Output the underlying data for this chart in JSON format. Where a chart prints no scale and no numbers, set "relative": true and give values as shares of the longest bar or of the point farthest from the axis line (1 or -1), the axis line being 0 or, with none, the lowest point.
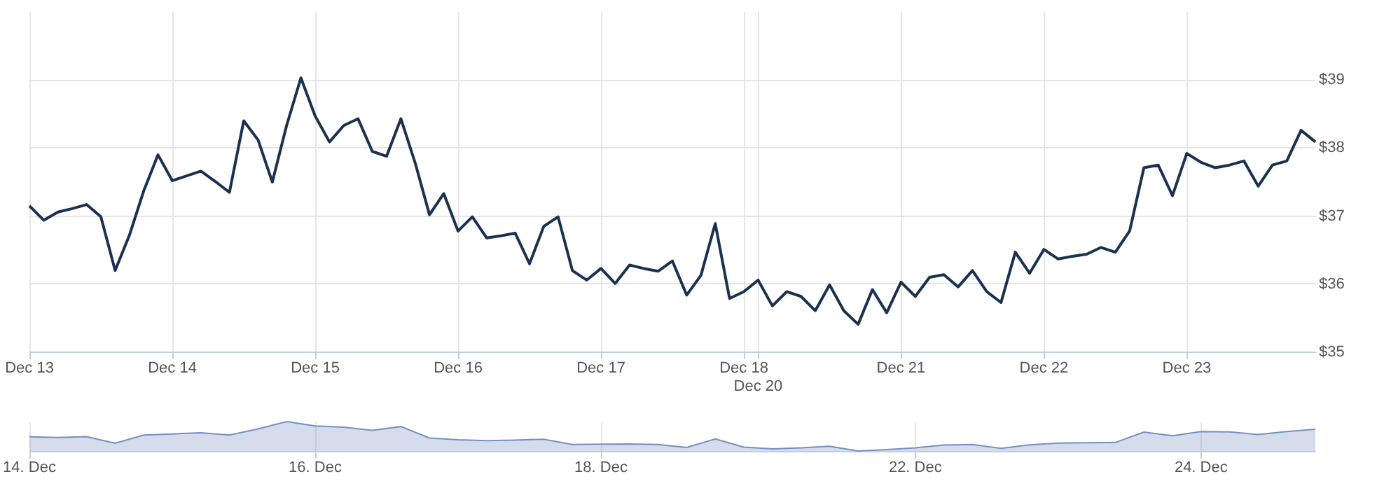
{
  "chart_data": [
    {
      "type": "line",
      "ylim": [
        35,
        40
      ],
      "grid": true,
      "marker": "none",
      "line_style": "solid",
      "categories": [
        "Dec 13",
        null,
        null,
        null,
        null,
        null,
        null,
        null,
        null,
        null,
        "Dec 14",
        null,
        null,
        null,
        null,
        null,
        null,
        null,
        null,
        null,
        "Dec 15",
        null,
        null,
        null,
        null,
        null,
        null,
        null,
        null,
        null,
        "Dec 16",
        null,
        null,
        null,
        null,
        null,
        null,
        null,
        null,
        null,
        "Dec 17",
        null,
        null,
        null,
        null,
        null,
        null,
        null,
        null,
        null,
        "Dec 18",
        "Dec 20",
        null,
        null,
        null,
        null,
        null,
        null,
        null,
        null,
        null,
        "Dec 21",
        null,
        null,
        null,
        null,
        null,
        null,
        null,
        null,
        null,
        "Dec 22",
        null,
        null,
        null,
        null,
        null,
        null,
        null,
        null,
        null,
        "Dec 23",
        null,
        null,
        null,
        null,
        null,
        null,
        null,
        null,
        null
      ],
      "yticks": [
        {
          "value": 35,
          "label": "$35"
        },
        {
          "value": 36,
          "label": "$36"
        },
        {
          "value": 37,
          "label": "$37"
        },
        {
          "value": 38,
          "label": "$38"
        },
        {
          "value": 39,
          "label": "$39"
        }
      ],
      "series": [
        {
          "color": "#1a3150",
          "values": [
            37.14,
            36.93,
            37.05,
            37.1,
            37.16,
            36.98,
            36.19,
            36.71,
            37.36,
            37.89,
            37.51,
            37.58,
            37.65,
            37.5,
            37.34,
            38.39,
            38.11,
            37.49,
            38.32,
            39.02,
            38.46,
            38.08,
            38.32,
            38.42,
            37.94,
            37.87,
            38.42,
            37.77,
            37.01,
            37.32,
            36.77,
            36.98,
            36.67,
            36.7,
            36.74,
            36.29,
            36.84,
            36.98,
            36.19,
            36.05,
            36.22,
            36.0,
            36.27,
            36.22,
            36.18,
            36.33,
            35.83,
            36.12,
            36.88,
            35.78,
            35.88,
            36.05,
            35.67,
            35.88,
            35.81,
            35.6,
            35.98,
            35.6,
            35.4,
            35.91,
            35.57,
            36.02,
            35.81,
            36.09,
            36.13,
            35.95,
            36.19,
            35.88,
            35.72,
            36.46,
            36.15,
            36.5,
            36.36,
            36.4,
            36.43,
            36.53,
            36.46,
            36.77,
            37.7,
            37.74,
            37.29,
            37.91,
            37.78,
            37.7,
            37.74,
            37.8,
            37.43,
            37.74,
            37.8,
            38.25,
            38.08
          ]
        }
      ]
    },
    {
      "type": "area",
      "relative": true,
      "tick_labels": "x",
      "grid": "x",
      "categories": [
        "14. Dec",
        null,
        null,
        null,
        null,
        null,
        null,
        null,
        null,
        null,
        "16. Dec",
        null,
        null,
        null,
        null,
        null,
        null,
        null,
        null,
        null,
        "18. Dec",
        null,
        null,
        null,
        null,
        null,
        null,
        null,
        null,
        null,
        null,
        "22. Dec",
        null,
        null,
        null,
        null,
        null,
        null,
        null,
        null,
        null,
        "24. Dec",
        null,
        null,
        null,
        null
      ],
      "series": [
        {
          "color": "#7590c0",
          "values": [
            0.48,
            0.46,
            0.49,
            0.26,
            0.54,
            0.58,
            0.62,
            0.54,
            0.75,
            1.0,
            0.85,
            0.81,
            0.7,
            0.83,
            0.44,
            0.38,
            0.35,
            0.37,
            0.4,
            0.22,
            0.23,
            0.24,
            0.22,
            0.12,
            0.41,
            0.13,
            0.07,
            0.11,
            0.16,
            0.0,
            0.05,
            0.11,
            0.2,
            0.22,
            0.09,
            0.21,
            0.27,
            0.28,
            0.29,
            0.64,
            0.52,
            0.66,
            0.65,
            0.56,
            0.66,
            0.74
          ]
        }
      ]
    }
  ]
}
